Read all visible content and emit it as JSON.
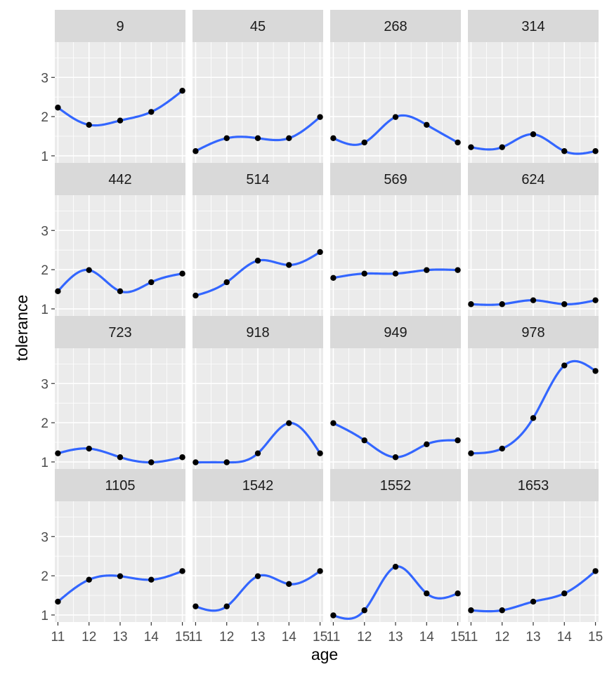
{
  "chart_data": {
    "type": "line",
    "xlabel": "age",
    "ylabel": "tolerance",
    "x_ticks": [
      11,
      12,
      13,
      14,
      15
    ],
    "y_ticks": [
      1,
      2,
      3
    ],
    "xlim": [
      10.9,
      15.1
    ],
    "ylim": [
      0.82,
      3.9
    ],
    "grid": true,
    "colors": {
      "panel_bg": "#ebebeb",
      "strip_bg": "#d9d9d9",
      "grid": "#ffffff",
      "line": "#3366ff",
      "point": "#000000"
    },
    "panels": [
      {
        "id": "9",
        "x": [
          11,
          12,
          13,
          14,
          15
        ],
        "y": [
          2.23,
          1.79,
          1.9,
          2.12,
          2.66
        ]
      },
      {
        "id": "45",
        "x": [
          11,
          12,
          13,
          14,
          15
        ],
        "y": [
          1.12,
          1.45,
          1.45,
          1.45,
          1.99
        ]
      },
      {
        "id": "268",
        "x": [
          11,
          12,
          13,
          14,
          15
        ],
        "y": [
          1.45,
          1.34,
          1.99,
          1.79,
          1.34
        ]
      },
      {
        "id": "314",
        "x": [
          11,
          12,
          13,
          14,
          15
        ],
        "y": [
          1.22,
          1.22,
          1.55,
          1.12,
          1.12
        ]
      },
      {
        "id": "442",
        "x": [
          11,
          12,
          13,
          14,
          15
        ],
        "y": [
          1.45,
          1.99,
          1.45,
          1.68,
          1.9
        ]
      },
      {
        "id": "514",
        "x": [
          11,
          12,
          13,
          14,
          15
        ],
        "y": [
          1.34,
          1.68,
          2.23,
          2.12,
          2.45
        ]
      },
      {
        "id": "569",
        "x": [
          11,
          12,
          13,
          14,
          15
        ],
        "y": [
          1.79,
          1.9,
          1.9,
          1.99,
          1.99
        ]
      },
      {
        "id": "624",
        "x": [
          11,
          12,
          13,
          14,
          15
        ],
        "y": [
          1.12,
          1.12,
          1.22,
          1.12,
          1.22
        ]
      },
      {
        "id": "723",
        "x": [
          11,
          12,
          13,
          14,
          15
        ],
        "y": [
          1.22,
          1.34,
          1.12,
          0.99,
          1.12
        ]
      },
      {
        "id": "918",
        "x": [
          11,
          12,
          13,
          14,
          15
        ],
        "y": [
          0.99,
          0.99,
          1.22,
          1.99,
          1.22
        ]
      },
      {
        "id": "949",
        "x": [
          11,
          12,
          13,
          14,
          15
        ],
        "y": [
          1.99,
          1.55,
          1.12,
          1.45,
          1.55
        ]
      },
      {
        "id": "978",
        "x": [
          11,
          12,
          13,
          14,
          15
        ],
        "y": [
          1.22,
          1.34,
          2.12,
          3.46,
          3.32
        ]
      },
      {
        "id": "1105",
        "x": [
          11,
          12,
          13,
          14,
          15
        ],
        "y": [
          1.34,
          1.9,
          1.99,
          1.9,
          2.12
        ]
      },
      {
        "id": "1542",
        "x": [
          11,
          12,
          13,
          14,
          15
        ],
        "y": [
          1.22,
          1.22,
          1.99,
          1.79,
          2.12
        ]
      },
      {
        "id": "1552",
        "x": [
          11,
          12,
          13,
          14,
          15
        ],
        "y": [
          0.99,
          1.12,
          2.23,
          1.55,
          1.55
        ]
      },
      {
        "id": "1653",
        "x": [
          11,
          12,
          13,
          14,
          15
        ],
        "y": [
          1.12,
          1.12,
          1.34,
          1.55,
          2.12
        ]
      }
    ]
  }
}
